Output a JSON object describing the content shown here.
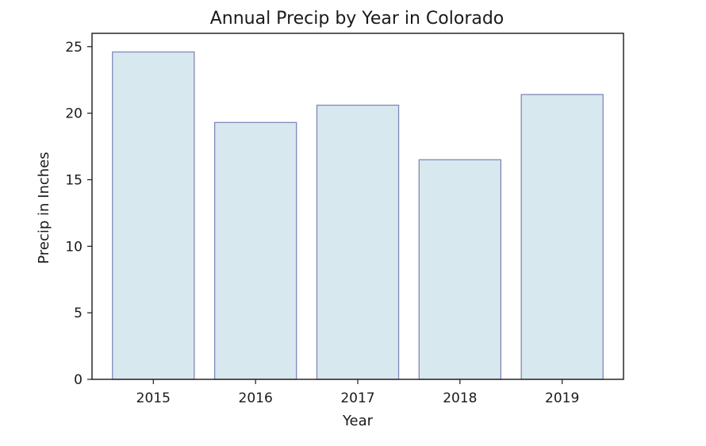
{
  "chart_data": {
    "type": "bar",
    "title": "Annual Precip by Year in Colorado",
    "xlabel": "Year",
    "ylabel": "Precip in Inches",
    "categories": [
      "2015",
      "2016",
      "2017",
      "2018",
      "2019"
    ],
    "values": [
      24.6,
      19.3,
      20.6,
      16.5,
      21.4
    ],
    "ylim": [
      0,
      26
    ],
    "yticks": [
      0,
      5,
      10,
      15,
      20,
      25
    ],
    "grid": false,
    "colors": {
      "bar_fill": "#d8e8ef",
      "bar_edge": "#8088b8",
      "axis": "#1a1a1a"
    }
  }
}
